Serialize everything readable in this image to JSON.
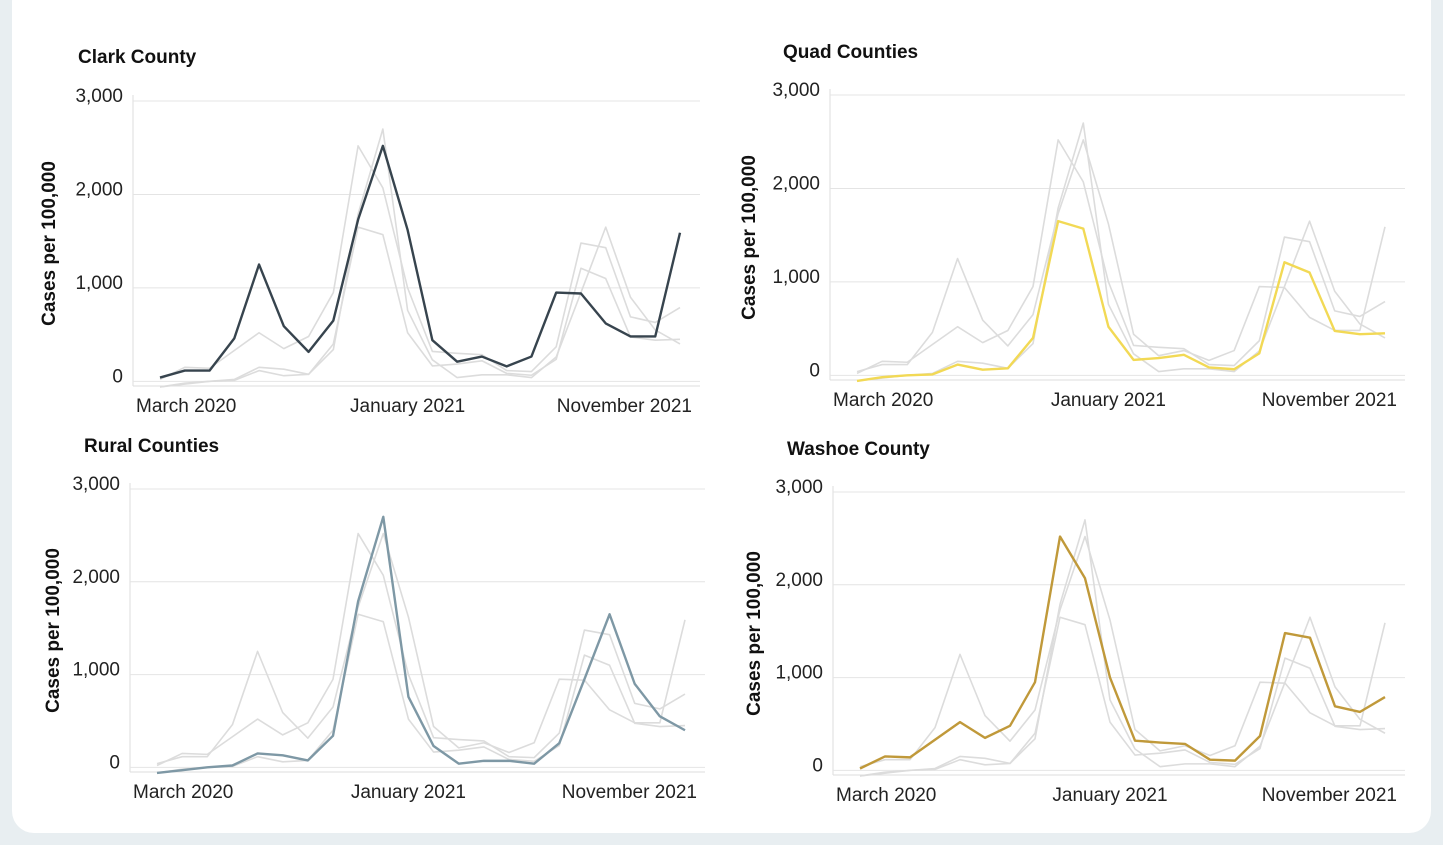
{
  "chart_data": {
    "type": "line",
    "ylabel": "Cases per 100,000",
    "categories": [
      "March 2020",
      null,
      null,
      null,
      null,
      null,
      null,
      null,
      null,
      null,
      "January 2021",
      null,
      null,
      null,
      null,
      null,
      null,
      null,
      null,
      null,
      "November 2021",
      null
    ],
    "context_color": "#dcdcdc",
    "ylim": [
      -50,
      3000
    ],
    "yticks": [
      0,
      {
        "value": 1000,
        "label": "1,000"
      },
      {
        "value": 2000,
        "label": "2,000"
      },
      {
        "value": 3000,
        "label": "3,000"
      }
    ],
    "grid": true,
    "series": [
      {
        "name": "Clark County",
        "color": "#37444e",
        "values": [
          40,
          115,
          115,
          460,
          1250,
          590,
          315,
          650,
          1730,
          2520,
          1620,
          440,
          210,
          265,
          160,
          265,
          950,
          940,
          620,
          480,
          480,
          1590
        ]
      },
      {
        "name": "Quad Counties",
        "color": "#f2d955",
        "values": [
          -60,
          -20,
          0,
          10,
          115,
          60,
          75,
          400,
          1650,
          1570,
          520,
          165,
          185,
          220,
          85,
          65,
          235,
          1210,
          1100,
          475,
          440,
          450
        ]
      },
      {
        "name": "Rural Counties",
        "color": "#7e98a5",
        "values": [
          -60,
          -30,
          0,
          20,
          150,
          130,
          75,
          340,
          1790,
          2700,
          760,
          230,
          40,
          70,
          70,
          40,
          260,
          950,
          1650,
          900,
          550,
          400
        ]
      },
      {
        "name": "Washoe County",
        "color": "#c0993a",
        "values": [
          20,
          150,
          140,
          330,
          520,
          350,
          480,
          950,
          2520,
          2070,
          1000,
          320,
          300,
          285,
          115,
          105,
          370,
          1480,
          1430,
          690,
          630,
          790
        ]
      }
    ]
  }
}
